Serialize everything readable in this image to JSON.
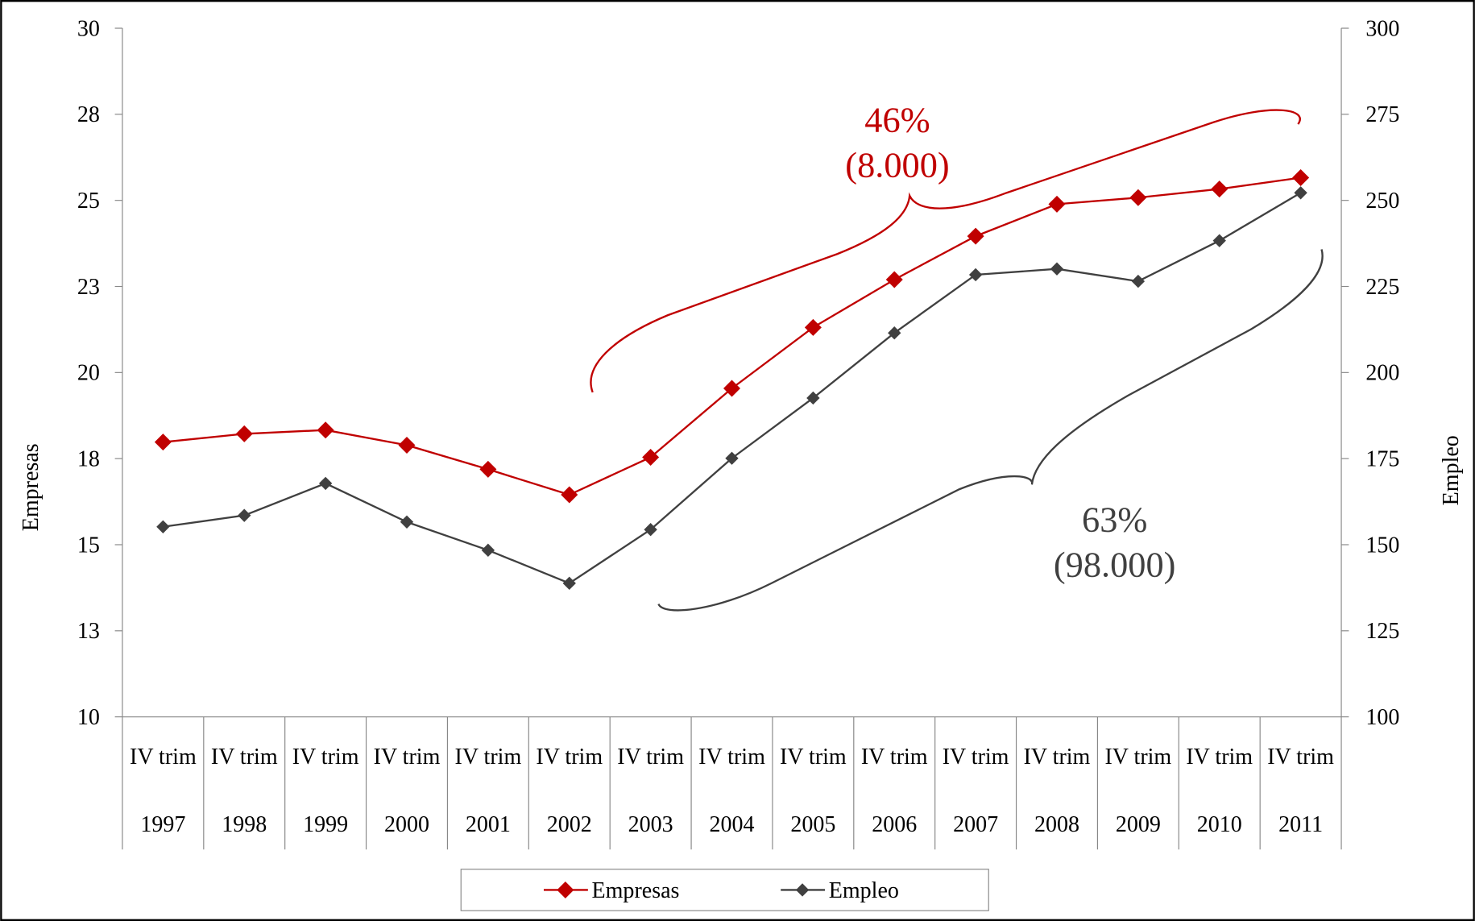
{
  "chart_data": {
    "type": "line",
    "categories": [
      [
        "IV trim",
        "1997"
      ],
      [
        "IV trim",
        "1998"
      ],
      [
        "IV trim",
        "1999"
      ],
      [
        "IV trim",
        "2000"
      ],
      [
        "IV trim",
        "2001"
      ],
      [
        "IV trim",
        "2002"
      ],
      [
        "IV trim",
        "2003"
      ],
      [
        "IV trim",
        "2004"
      ],
      [
        "IV trim",
        "2005"
      ],
      [
        "IV trim",
        "2006"
      ],
      [
        "IV trim",
        "2007"
      ],
      [
        "IV trim",
        "2008"
      ],
      [
        "IV trim",
        "2009"
      ],
      [
        "IV trim",
        "2010"
      ],
      [
        "IV trim",
        "2011"
      ]
    ],
    "series": [
      {
        "name": "Empresas",
        "color": "#c00000",
        "values": [
          17.98,
          18.22,
          18.33,
          17.89,
          17.19,
          16.45,
          17.54,
          19.54,
          21.31,
          22.7,
          23.96,
          24.89,
          25.08,
          25.33,
          25.66
        ]
      },
      {
        "name": "Empleo",
        "color": "#404040",
        "axis": "y2",
        "values": [
          155.2,
          158.5,
          167.8,
          156.6,
          148.4,
          138.8,
          154.4,
          175.1,
          192.6,
          211.5,
          228.4,
          230.1,
          226.5,
          238.3,
          252.2
        ]
      }
    ],
    "ylabel": "Empresas",
    "y2label": "Empleo",
    "ylim": [
      10,
      30
    ],
    "yticks": [
      10,
      {
        "value": 12.5,
        "label": "13"
      },
      15,
      {
        "value": 17.5,
        "label": "18"
      },
      20,
      {
        "value": 22.5,
        "label": "23"
      },
      25,
      {
        "value": 27.5,
        "label": "28"
      },
      30
    ],
    "y2lim": [
      100,
      300
    ],
    "y2ticks": [
      100,
      125,
      150,
      175,
      200,
      225,
      250,
      275,
      300
    ],
    "annotations": [
      {
        "lines": [
          "46%",
          "(8.000)"
        ],
        "color": "#c00000"
      },
      {
        "lines": [
          "63%",
          "(98.000)"
        ],
        "color": "#404040"
      }
    ],
    "legend": "bottom"
  }
}
